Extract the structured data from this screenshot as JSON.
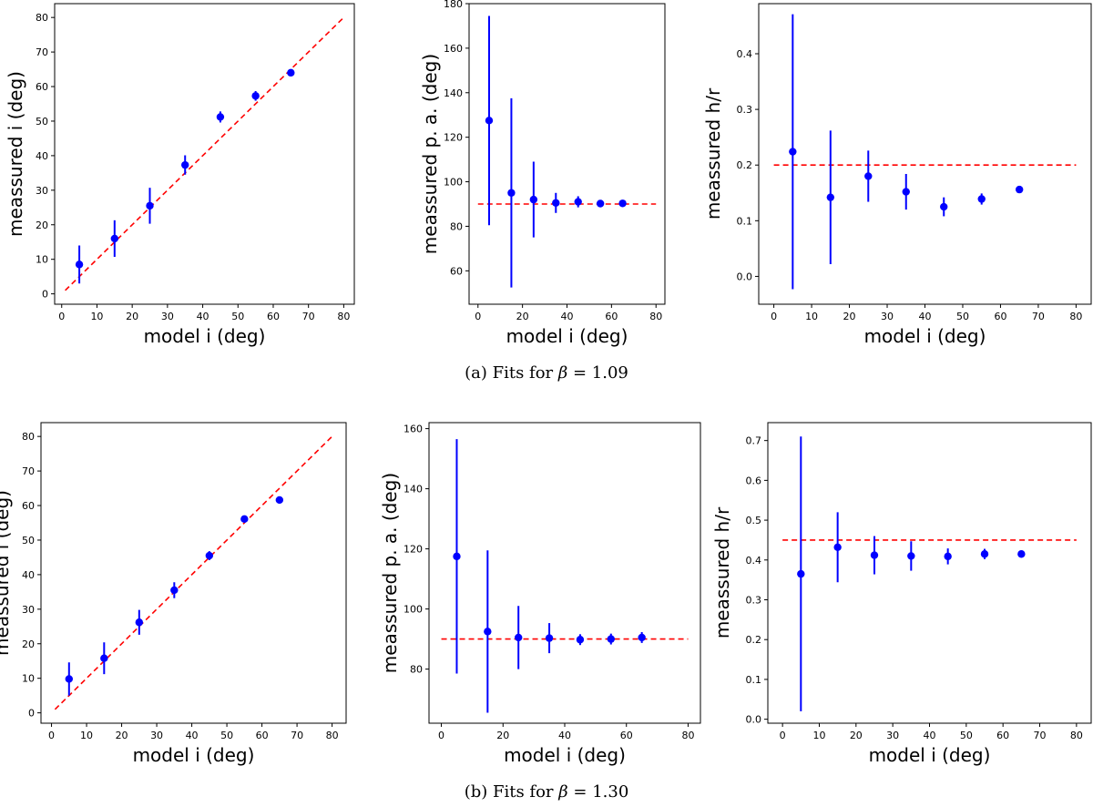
{
  "colors": {
    "data": "#0000ff",
    "reference": "#ff0000",
    "axis": "#000000"
  },
  "captions": {
    "a": {
      "prefix": "(a) Fits for ",
      "symbol": "β",
      "suffix": " = 1.09"
    },
    "b": {
      "prefix": "(b) Fits for ",
      "symbol": "β",
      "suffix": " = 1.30"
    }
  },
  "chart_data": [
    {
      "id": "a-inclination",
      "type": "scatter",
      "xlabel": "model i (deg)",
      "ylabel": "meassured i (deg)",
      "xlim": [
        -2,
        83
      ],
      "ylim": [
        -3,
        84
      ],
      "xticks": [
        0,
        10,
        20,
        30,
        40,
        50,
        60,
        70,
        80
      ],
      "yticks": [
        0,
        10,
        20,
        30,
        40,
        50,
        60,
        70,
        80
      ],
      "ydecimals": 0,
      "reference": {
        "x": [
          1,
          80
        ],
        "y": [
          1,
          80
        ]
      },
      "points": [
        {
          "x": 5,
          "y": 8.5,
          "err": 5.5
        },
        {
          "x": 15,
          "y": 16,
          "err": 5.3
        },
        {
          "x": 25,
          "y": 25.5,
          "err": 5.2
        },
        {
          "x": 35,
          "y": 37.3,
          "err": 2.8
        },
        {
          "x": 45,
          "y": 51.2,
          "err": 1.6
        },
        {
          "x": 55,
          "y": 57.3,
          "err": 1.4
        },
        {
          "x": 65,
          "y": 64,
          "err": 1.0
        }
      ]
    },
    {
      "id": "a-position-angle",
      "type": "scatter",
      "xlabel": "model i (deg)",
      "ylabel": "meassured p. a.  (deg)",
      "xlim": [
        -4,
        84
      ],
      "ylim": [
        45,
        180
      ],
      "xticks": [
        0,
        20,
        40,
        60,
        80
      ],
      "yticks": [
        60,
        80,
        100,
        120,
        140,
        160,
        180
      ],
      "ydecimals": 0,
      "reference": {
        "x": [
          0,
          80
        ],
        "y": [
          90,
          90
        ]
      },
      "points": [
        {
          "x": 5,
          "y": 127.5,
          "err": 47
        },
        {
          "x": 15,
          "y": 95,
          "err": 42.5
        },
        {
          "x": 25,
          "y": 92,
          "err": 17
        },
        {
          "x": 35,
          "y": 90.5,
          "err": 4.5
        },
        {
          "x": 45,
          "y": 91,
          "err": 2.5
        },
        {
          "x": 55,
          "y": 90.2,
          "err": 1.5
        },
        {
          "x": 65,
          "y": 90.3,
          "err": 1.2
        }
      ]
    },
    {
      "id": "a-scale-height",
      "type": "scatter",
      "xlabel": "model i (deg)",
      "ylabel": "meassured h/r",
      "xlim": [
        -4,
        84
      ],
      "ylim": [
        -0.05,
        0.49
      ],
      "xticks": [
        0,
        10,
        20,
        30,
        40,
        50,
        60,
        70,
        80
      ],
      "yticks": [
        0.0,
        0.1,
        0.2,
        0.3,
        0.4
      ],
      "ydecimals": 1,
      "reference": {
        "x": [
          0,
          80
        ],
        "y": [
          0.2,
          0.2
        ]
      },
      "points": [
        {
          "x": 5,
          "y": 0.224,
          "err": 0.247
        },
        {
          "x": 15,
          "y": 0.142,
          "err": 0.12
        },
        {
          "x": 25,
          "y": 0.18,
          "err": 0.046
        },
        {
          "x": 35,
          "y": 0.152,
          "err": 0.032
        },
        {
          "x": 45,
          "y": 0.125,
          "err": 0.017
        },
        {
          "x": 55,
          "y": 0.139,
          "err": 0.01
        },
        {
          "x": 65,
          "y": 0.156,
          "err": 0.004
        }
      ]
    },
    {
      "id": "b-inclination",
      "type": "scatter",
      "xlabel": "model i (deg)",
      "ylabel": "meassured i (deg)",
      "xlim": [
        -3,
        84
      ],
      "ylim": [
        -3,
        84
      ],
      "xticks": [
        0,
        10,
        20,
        30,
        40,
        50,
        60,
        70,
        80
      ],
      "yticks": [
        0,
        10,
        20,
        30,
        40,
        50,
        60,
        70,
        80
      ],
      "ydecimals": 0,
      "reference": {
        "x": [
          1,
          80
        ],
        "y": [
          1,
          80
        ]
      },
      "points": [
        {
          "x": 5,
          "y": 9.8,
          "err": 4.8
        },
        {
          "x": 15,
          "y": 15.8,
          "err": 4.6
        },
        {
          "x": 25,
          "y": 26.2,
          "err": 3.6
        },
        {
          "x": 35,
          "y": 35.5,
          "err": 2.3
        },
        {
          "x": 45,
          "y": 45.5,
          "err": 1.3
        },
        {
          "x": 55,
          "y": 56.1,
          "err": 1.0
        },
        {
          "x": 65,
          "y": 61.6,
          "err": 0.9
        }
      ]
    },
    {
      "id": "b-position-angle",
      "type": "scatter",
      "xlabel": "model i (deg)",
      "ylabel": "meassured p. a.  (deg)",
      "xlim": [
        -4,
        84
      ],
      "ylim": [
        62,
        162
      ],
      "xticks": [
        0,
        20,
        40,
        60,
        80
      ],
      "yticks": [
        80,
        100,
        120,
        140,
        160
      ],
      "ydecimals": 0,
      "reference": {
        "x": [
          0,
          80
        ],
        "y": [
          90,
          90
        ]
      },
      "points": [
        {
          "x": 5,
          "y": 117.5,
          "err": 39
        },
        {
          "x": 15,
          "y": 92.5,
          "err": 27
        },
        {
          "x": 25,
          "y": 90.5,
          "err": 10.5
        },
        {
          "x": 35,
          "y": 90.3,
          "err": 5
        },
        {
          "x": 45,
          "y": 89.8,
          "err": 1.8
        },
        {
          "x": 55,
          "y": 90,
          "err": 1.8
        },
        {
          "x": 65,
          "y": 90.5,
          "err": 1.8
        }
      ]
    },
    {
      "id": "b-scale-height",
      "type": "scatter",
      "xlabel": "model i (deg)",
      "ylabel": "meassured h/r",
      "xlim": [
        -4,
        84
      ],
      "ylim": [
        -0.01,
        0.745
      ],
      "xticks": [
        0,
        10,
        20,
        30,
        40,
        50,
        60,
        70,
        80
      ],
      "yticks": [
        0.0,
        0.1,
        0.2,
        0.3,
        0.4,
        0.5,
        0.6,
        0.7
      ],
      "ydecimals": 1,
      "reference": {
        "x": [
          0,
          80
        ],
        "y": [
          0.45,
          0.45
        ]
      },
      "points": [
        {
          "x": 5,
          "y": 0.365,
          "err": 0.345
        },
        {
          "x": 15,
          "y": 0.432,
          "err": 0.088
        },
        {
          "x": 25,
          "y": 0.412,
          "err": 0.048
        },
        {
          "x": 35,
          "y": 0.41,
          "err": 0.037
        },
        {
          "x": 45,
          "y": 0.409,
          "err": 0.02
        },
        {
          "x": 55,
          "y": 0.415,
          "err": 0.013
        },
        {
          "x": 65,
          "y": 0.415,
          "err": 0.008
        }
      ]
    }
  ]
}
